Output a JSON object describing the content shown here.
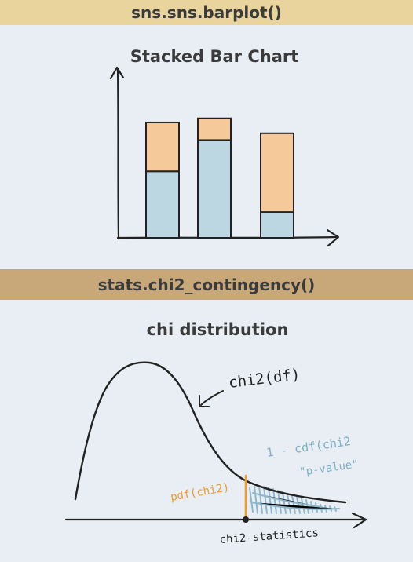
{
  "section1": {
    "header": "sns.sns.barplot()",
    "title": "Stacked Bar Chart"
  },
  "section2": {
    "header": "stats.chi2_contingency()",
    "title": "chi distribution",
    "curve_label": "chi2(df)",
    "tail_label_1": "1 - cdf(chi2",
    "tail_label_2": "\"p-value\"",
    "pdf_label": "pdf(chi2)",
    "x_label": "chi2-statistics"
  },
  "colors": {
    "bar_top": "#f5c99a",
    "bar_bottom": "#bcd6e2",
    "pdf_line": "#f39a2b",
    "hatch": "#8fb7cc",
    "ink": "#222222"
  },
  "chart_data": {
    "type": "bar",
    "stacked": true,
    "categories": [
      "",
      "",
      ""
    ],
    "series": [
      {
        "values": [
          4.9,
          7.2,
          1.9
        ]
      },
      {
        "values": [
          3.6,
          1.6,
          5.8
        ]
      }
    ],
    "ylim": [
      0,
      10
    ]
  }
}
